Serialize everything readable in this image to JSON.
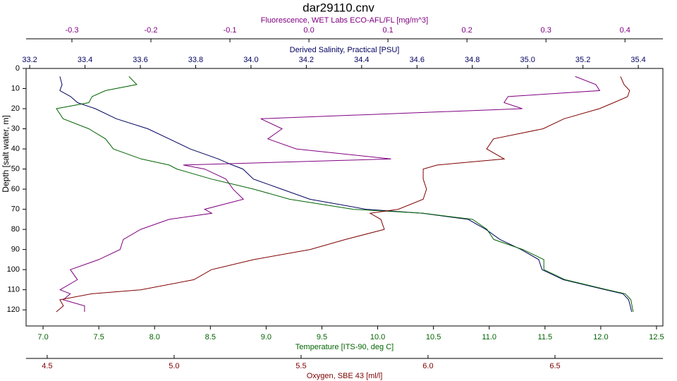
{
  "chart_data": {
    "type": "line",
    "title": "dar29110.cnv",
    "ylabel": "Depth [salt water, m]",
    "y": [
      4,
      8,
      11,
      14,
      17,
      20,
      25,
      30,
      35,
      40,
      45,
      48,
      50,
      55,
      60,
      65,
      70,
      72,
      75,
      80,
      85,
      90,
      95,
      100,
      105,
      110,
      112,
      115,
      118,
      121
    ],
    "ylim": [
      0,
      128
    ],
    "yticks": [
      0,
      10,
      20,
      30,
      40,
      50,
      60,
      70,
      80,
      90,
      100,
      110,
      120
    ],
    "y_reversed": true,
    "grid": false,
    "series": [
      {
        "name": "Fluorescence, WET Labs ECO-AFL/FL [mg/m^3]",
        "color": "#800080",
        "xlim": [
          -0.358,
          0.448
        ],
        "xticks": [
          -0.3,
          -0.2,
          -0.1,
          {
            "value": 0,
            "label": "0.0"
          },
          0.1,
          0.2,
          0.3,
          0.4
        ],
        "values": [
          0.337,
          0.363,
          0.368,
          0.252,
          0.247,
          0.27,
          -0.061,
          -0.034,
          -0.052,
          -0.016,
          0.104,
          -0.159,
          -0.132,
          -0.105,
          -0.096,
          -0.083,
          -0.132,
          -0.123,
          -0.177,
          -0.213,
          -0.235,
          -0.239,
          -0.266,
          -0.302,
          -0.293,
          -0.315,
          -0.302,
          -0.311,
          -0.284,
          -0.284
        ]
      },
      {
        "name": "Derived Salinity, Practical [PSU]",
        "color": "#000060",
        "xlim": [
          33.187,
          35.489
        ],
        "xticks": [
          33.2,
          33.4,
          33.6,
          33.8,
          {
            "value": 34,
            "label": "34.0"
          },
          34.2,
          34.4,
          34.6,
          34.8,
          {
            "value": 35,
            "label": "35.0"
          },
          35.2,
          35.4
        ],
        "values": [
          33.309,
          33.317,
          33.309,
          33.348,
          33.373,
          33.437,
          33.513,
          33.627,
          33.704,
          33.78,
          33.882,
          33.933,
          33.971,
          34.009,
          34.111,
          34.213,
          34.416,
          34.62,
          34.785,
          34.849,
          34.9,
          34.976,
          35.04,
          35.052,
          35.129,
          35.281,
          35.345,
          35.365,
          35.371,
          35.376
        ]
      },
      {
        "name": "Temperature [ITS-90, deg C]",
        "color": "#006400",
        "xlim": [
          6.848,
          12.557
        ],
        "xticks": [
          {
            "value": 7,
            "label": "7.0"
          },
          7.5,
          {
            "value": 8,
            "label": "8.0"
          },
          8.5,
          {
            "value": 9,
            "label": "9.0"
          },
          9.5,
          {
            "value": 10,
            "label": "10.0"
          },
          10.5,
          {
            "value": 11,
            "label": "11.0"
          },
          11.5,
          {
            "value": 12,
            "label": "12.0"
          },
          12.5
        ],
        "values": [
          7.77,
          7.84,
          7.56,
          7.44,
          7.41,
          7.12,
          7.18,
          7.41,
          7.56,
          7.63,
          7.88,
          8.13,
          8.2,
          8.51,
          8.89,
          9.21,
          9.78,
          10.41,
          10.85,
          10.98,
          11.04,
          11.3,
          11.49,
          11.49,
          11.68,
          12.06,
          12.22,
          12.27,
          12.28,
          12.29
        ]
      },
      {
        "name": "Oxygen, SBE 43 [ml/l]",
        "color": "#800000",
        "xlim": [
          4.417,
          6.925
        ],
        "xticks": [
          4.5,
          {
            "value": 5,
            "label": "5.0"
          },
          5.5,
          {
            "value": 6,
            "label": "6.0"
          },
          6.5
        ],
        "values": [
          6.758,
          6.772,
          6.794,
          6.786,
          6.731,
          6.675,
          6.536,
          6.453,
          6.258,
          6.231,
          6.3,
          6.036,
          5.981,
          5.981,
          5.994,
          5.981,
          5.883,
          5.772,
          5.814,
          5.828,
          5.675,
          5.536,
          5.314,
          5.147,
          5.078,
          4.869,
          4.675,
          4.55,
          4.564,
          4.536
        ]
      }
    ]
  }
}
